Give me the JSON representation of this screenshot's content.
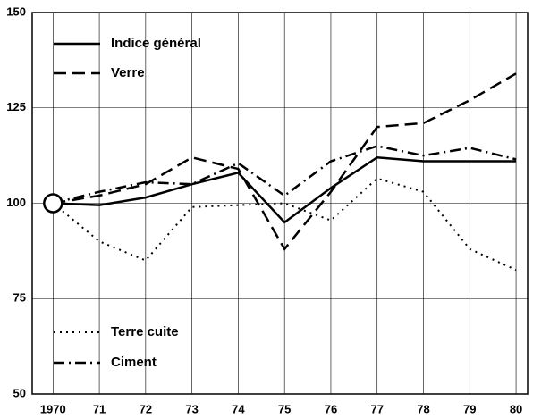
{
  "chart_data": {
    "type": "line",
    "x": [
      1970,
      1971,
      1972,
      1973,
      1974,
      1975,
      1976,
      1977,
      1978,
      1979,
      1980
    ],
    "xlim": [
      1969.55,
      1980.25
    ],
    "xticks": [
      {
        "value": 1970,
        "label": "1970"
      },
      {
        "value": 1971,
        "label": "71"
      },
      {
        "value": 1972,
        "label": "72"
      },
      {
        "value": 1973,
        "label": "73"
      },
      {
        "value": 1974,
        "label": "74"
      },
      {
        "value": 1975,
        "label": "75"
      },
      {
        "value": 1976,
        "label": "76"
      },
      {
        "value": 1977,
        "label": "77"
      },
      {
        "value": 1978,
        "label": "78"
      },
      {
        "value": 1979,
        "label": "79"
      },
      {
        "value": 1980,
        "label": "80"
      }
    ],
    "ylim": [
      50,
      150
    ],
    "yticks": [
      50,
      75,
      100,
      125,
      150
    ],
    "grid": true,
    "series": [
      {
        "name": "Indice général",
        "color": "#000000",
        "dash": "solid",
        "values": [
          100,
          99.5,
          101.5,
          105,
          108,
          95,
          104,
          112,
          111,
          111,
          111
        ]
      },
      {
        "name": "Verre",
        "color": "#000000",
        "dash": "dashed",
        "values": [
          100,
          102,
          105,
          112,
          109,
          88,
          103,
          120,
          121,
          127,
          134
        ]
      },
      {
        "name": "Terre cuite",
        "color": "#000000",
        "dash": "dotted",
        "values": [
          100,
          90,
          85,
          99,
          99.5,
          100,
          95.5,
          106.5,
          103,
          88,
          82.5
        ]
      },
      {
        "name": "Ciment",
        "color": "#000000",
        "dash": "dashdot",
        "values": [
          100,
          103,
          105.5,
          105,
          110.5,
          102,
          111,
          115,
          112.5,
          114.5,
          111.5
        ]
      }
    ]
  }
}
